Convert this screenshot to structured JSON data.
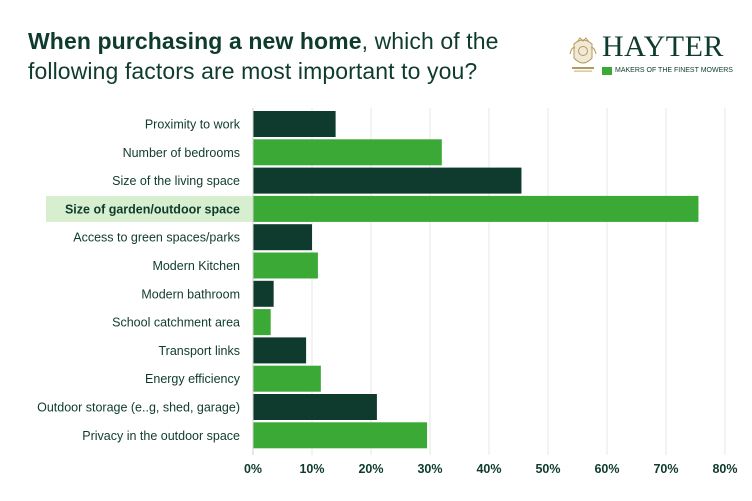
{
  "header": {
    "title_bold": "When purchasing a new home",
    "title_rest": ", which of the following factors are most important to you?"
  },
  "logo": {
    "brand": "HAYTER",
    "tagline": "MAKERS OF THE FINEST MOWERS",
    "icon": "crest-icon"
  },
  "colors": {
    "dark_green": "#0f3b2e",
    "bright_green": "#3aa935",
    "highlight_bg": "#d7efcf",
    "grid": "#e7e7e7"
  },
  "chart_data": {
    "type": "bar",
    "orientation": "horizontal",
    "categories": [
      "Proximity to work",
      "Number of bedrooms",
      "Size of the living space",
      "Size of garden/outdoor space",
      "Access to green spaces/parks",
      "Modern Kitchen",
      "Modern bathroom",
      "School catchment area",
      "Transport links",
      "Energy efficiency",
      "Outdoor storage (e..g, shed, garage)",
      "Privacy in the outdoor space"
    ],
    "values": [
      14,
      32,
      45.5,
      75.5,
      10,
      11,
      3.5,
      3,
      9,
      11.5,
      21,
      29.5
    ],
    "bar_colors": [
      "dark",
      "light",
      "dark",
      "light",
      "dark",
      "light",
      "dark",
      "light",
      "dark",
      "light",
      "dark",
      "light"
    ],
    "highlighted_category": "Size of garden/outdoor space",
    "x_ticks": [
      "0%",
      "10%",
      "20%",
      "30%",
      "40%",
      "50%",
      "60%",
      "70%",
      "80%"
    ],
    "xlim": [
      0,
      80
    ],
    "grid": true,
    "legend": "none"
  }
}
